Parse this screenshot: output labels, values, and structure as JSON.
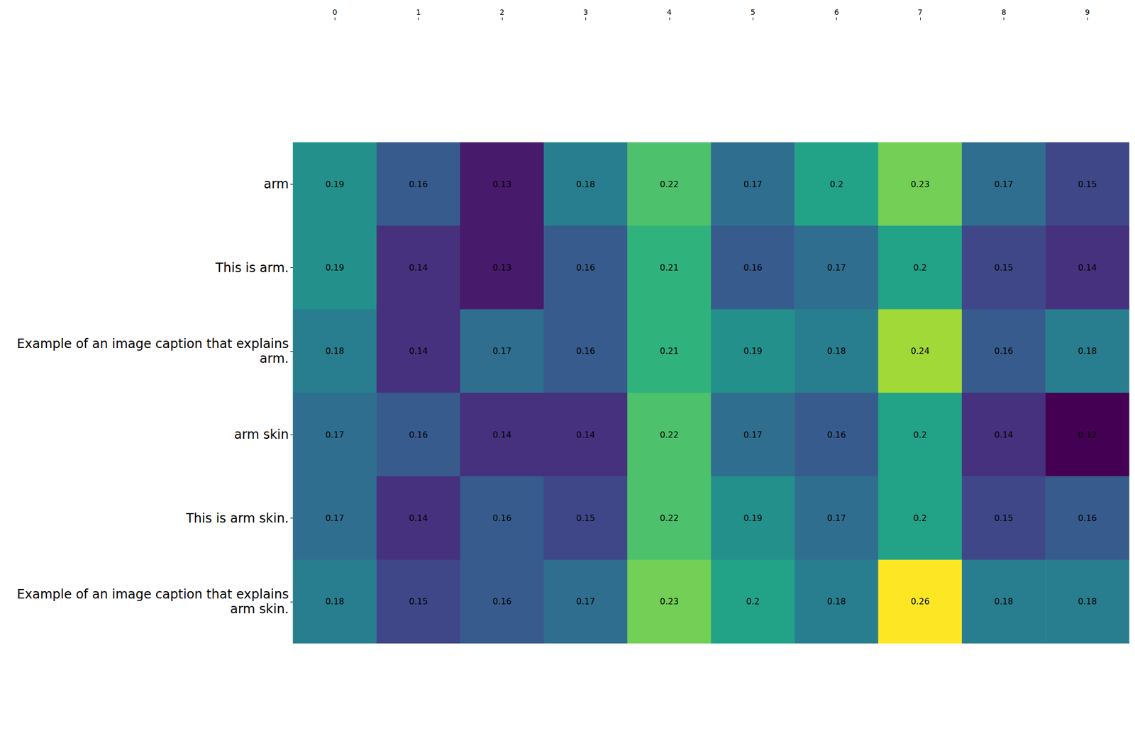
{
  "chart_data": {
    "type": "heatmap",
    "x": [
      0,
      1,
      2,
      3,
      4,
      5,
      6,
      7,
      8,
      9
    ],
    "y": [
      "arm",
      "This is arm.",
      "Example of an image caption that explains\narm.",
      "arm skin",
      "This is arm skin.",
      "Example of an image caption that explains\narm skin."
    ],
    "cells": [
      [
        0.19,
        0.16,
        0.13,
        0.18,
        0.22,
        0.17,
        0.2,
        0.23,
        0.17,
        0.15
      ],
      [
        0.19,
        0.14,
        0.13,
        0.16,
        0.21,
        0.16,
        0.17,
        0.2,
        0.15,
        0.14
      ],
      [
        0.18,
        0.14,
        0.17,
        0.16,
        0.21,
        0.19,
        0.18,
        0.24,
        0.16,
        0.18
      ],
      [
        0.17,
        0.16,
        0.14,
        0.14,
        0.22,
        0.17,
        0.16,
        0.2,
        0.14,
        0.12
      ],
      [
        0.17,
        0.14,
        0.16,
        0.15,
        0.22,
        0.19,
        0.17,
        0.2,
        0.15,
        0.16
      ],
      [
        0.18,
        0.15,
        0.16,
        0.17,
        0.23,
        0.2,
        0.18,
        0.26,
        0.18,
        0.18
      ]
    ],
    "data_labels": true
  }
}
